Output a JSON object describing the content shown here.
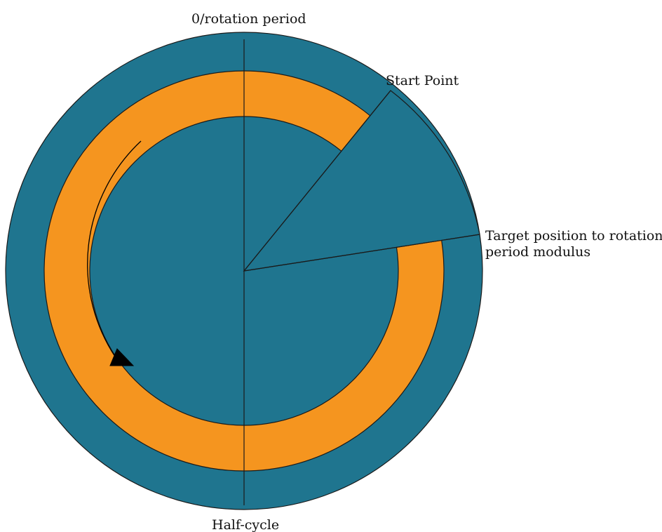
{
  "labels": {
    "top": "0/rotation period",
    "start": "Start Point",
    "target_line1": "Target position to rotation",
    "target_line2": "period modulus",
    "bottom": "Half-cycle"
  },
  "colors": {
    "disc": "#1f758f",
    "ring": "#f5951f",
    "stroke": "#1a1a1a",
    "arrow": "#000000",
    "background": "#ffffff"
  }
}
